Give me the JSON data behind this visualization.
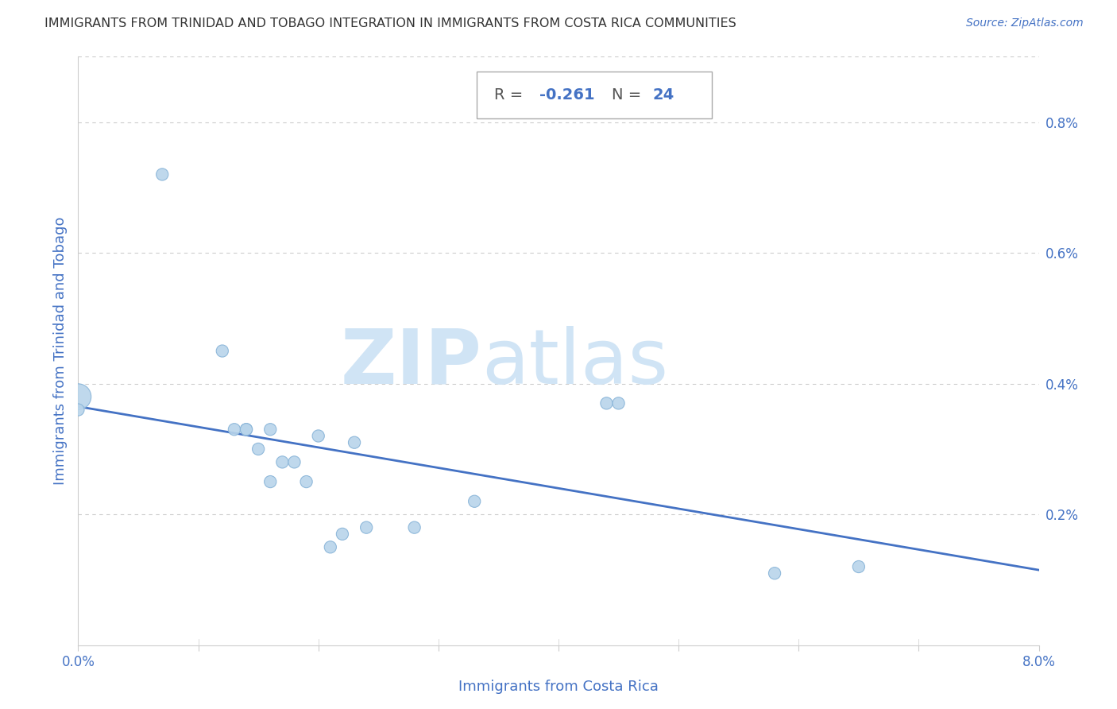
{
  "title": "IMMIGRANTS FROM TRINIDAD AND TOBAGO INTEGRATION IN IMMIGRANTS FROM COSTA RICA COMMUNITIES",
  "source": "Source: ZipAtlas.com",
  "xlabel": "Immigrants from Costa Rica",
  "ylabel": "Immigrants from Trinidad and Tobago",
  "xlim": [
    0.0,
    0.08
  ],
  "ylim": [
    0.0,
    0.009
  ],
  "xticks": [
    0.0,
    0.01,
    0.02,
    0.03,
    0.04,
    0.05,
    0.06,
    0.07,
    0.08
  ],
  "yticks": [
    0.002,
    0.004,
    0.006,
    0.008
  ],
  "ytick_labels": [
    "0.2%",
    "0.4%",
    "0.6%",
    "0.8%"
  ],
  "xtick_labels": [
    "0.0%",
    "",
    "",
    "",
    "",
    "",
    "",
    "",
    "8.0%"
  ],
  "R": -0.261,
  "N": 24,
  "dot_color": "#b8d4ea",
  "dot_edge_color": "#88b4d8",
  "line_color": "#4472c4",
  "annotation_color": "#4472c4",
  "grid_color": "#cccccc",
  "background_color": "#ffffff",
  "scatter_x": [
    0.0,
    0.0,
    0.007,
    0.012,
    0.013,
    0.014,
    0.014,
    0.015,
    0.016,
    0.016,
    0.017,
    0.018,
    0.019,
    0.02,
    0.021,
    0.022,
    0.023,
    0.024,
    0.028,
    0.033,
    0.044,
    0.045,
    0.058,
    0.065
  ],
  "scatter_y": [
    0.0038,
    0.0036,
    0.0072,
    0.0045,
    0.0033,
    0.0033,
    0.0033,
    0.003,
    0.0033,
    0.0025,
    0.0028,
    0.0028,
    0.0025,
    0.0032,
    0.0015,
    0.0017,
    0.0031,
    0.0018,
    0.0018,
    0.0022,
    0.0037,
    0.0037,
    0.0011,
    0.0012
  ],
  "scatter_sizes": [
    120,
    120,
    120,
    120,
    120,
    120,
    120,
    120,
    120,
    120,
    120,
    120,
    120,
    120,
    120,
    120,
    120,
    120,
    120,
    120,
    120,
    120,
    120,
    120
  ],
  "big_dot_idx": 0,
  "big_dot_size": 550,
  "line_x_start": 0.0,
  "line_x_end": 0.08,
  "line_y_start": 0.00365,
  "line_y_end": 0.00115,
  "zip_color": "#d0e4f5",
  "atlas_color": "#d0e4f5"
}
